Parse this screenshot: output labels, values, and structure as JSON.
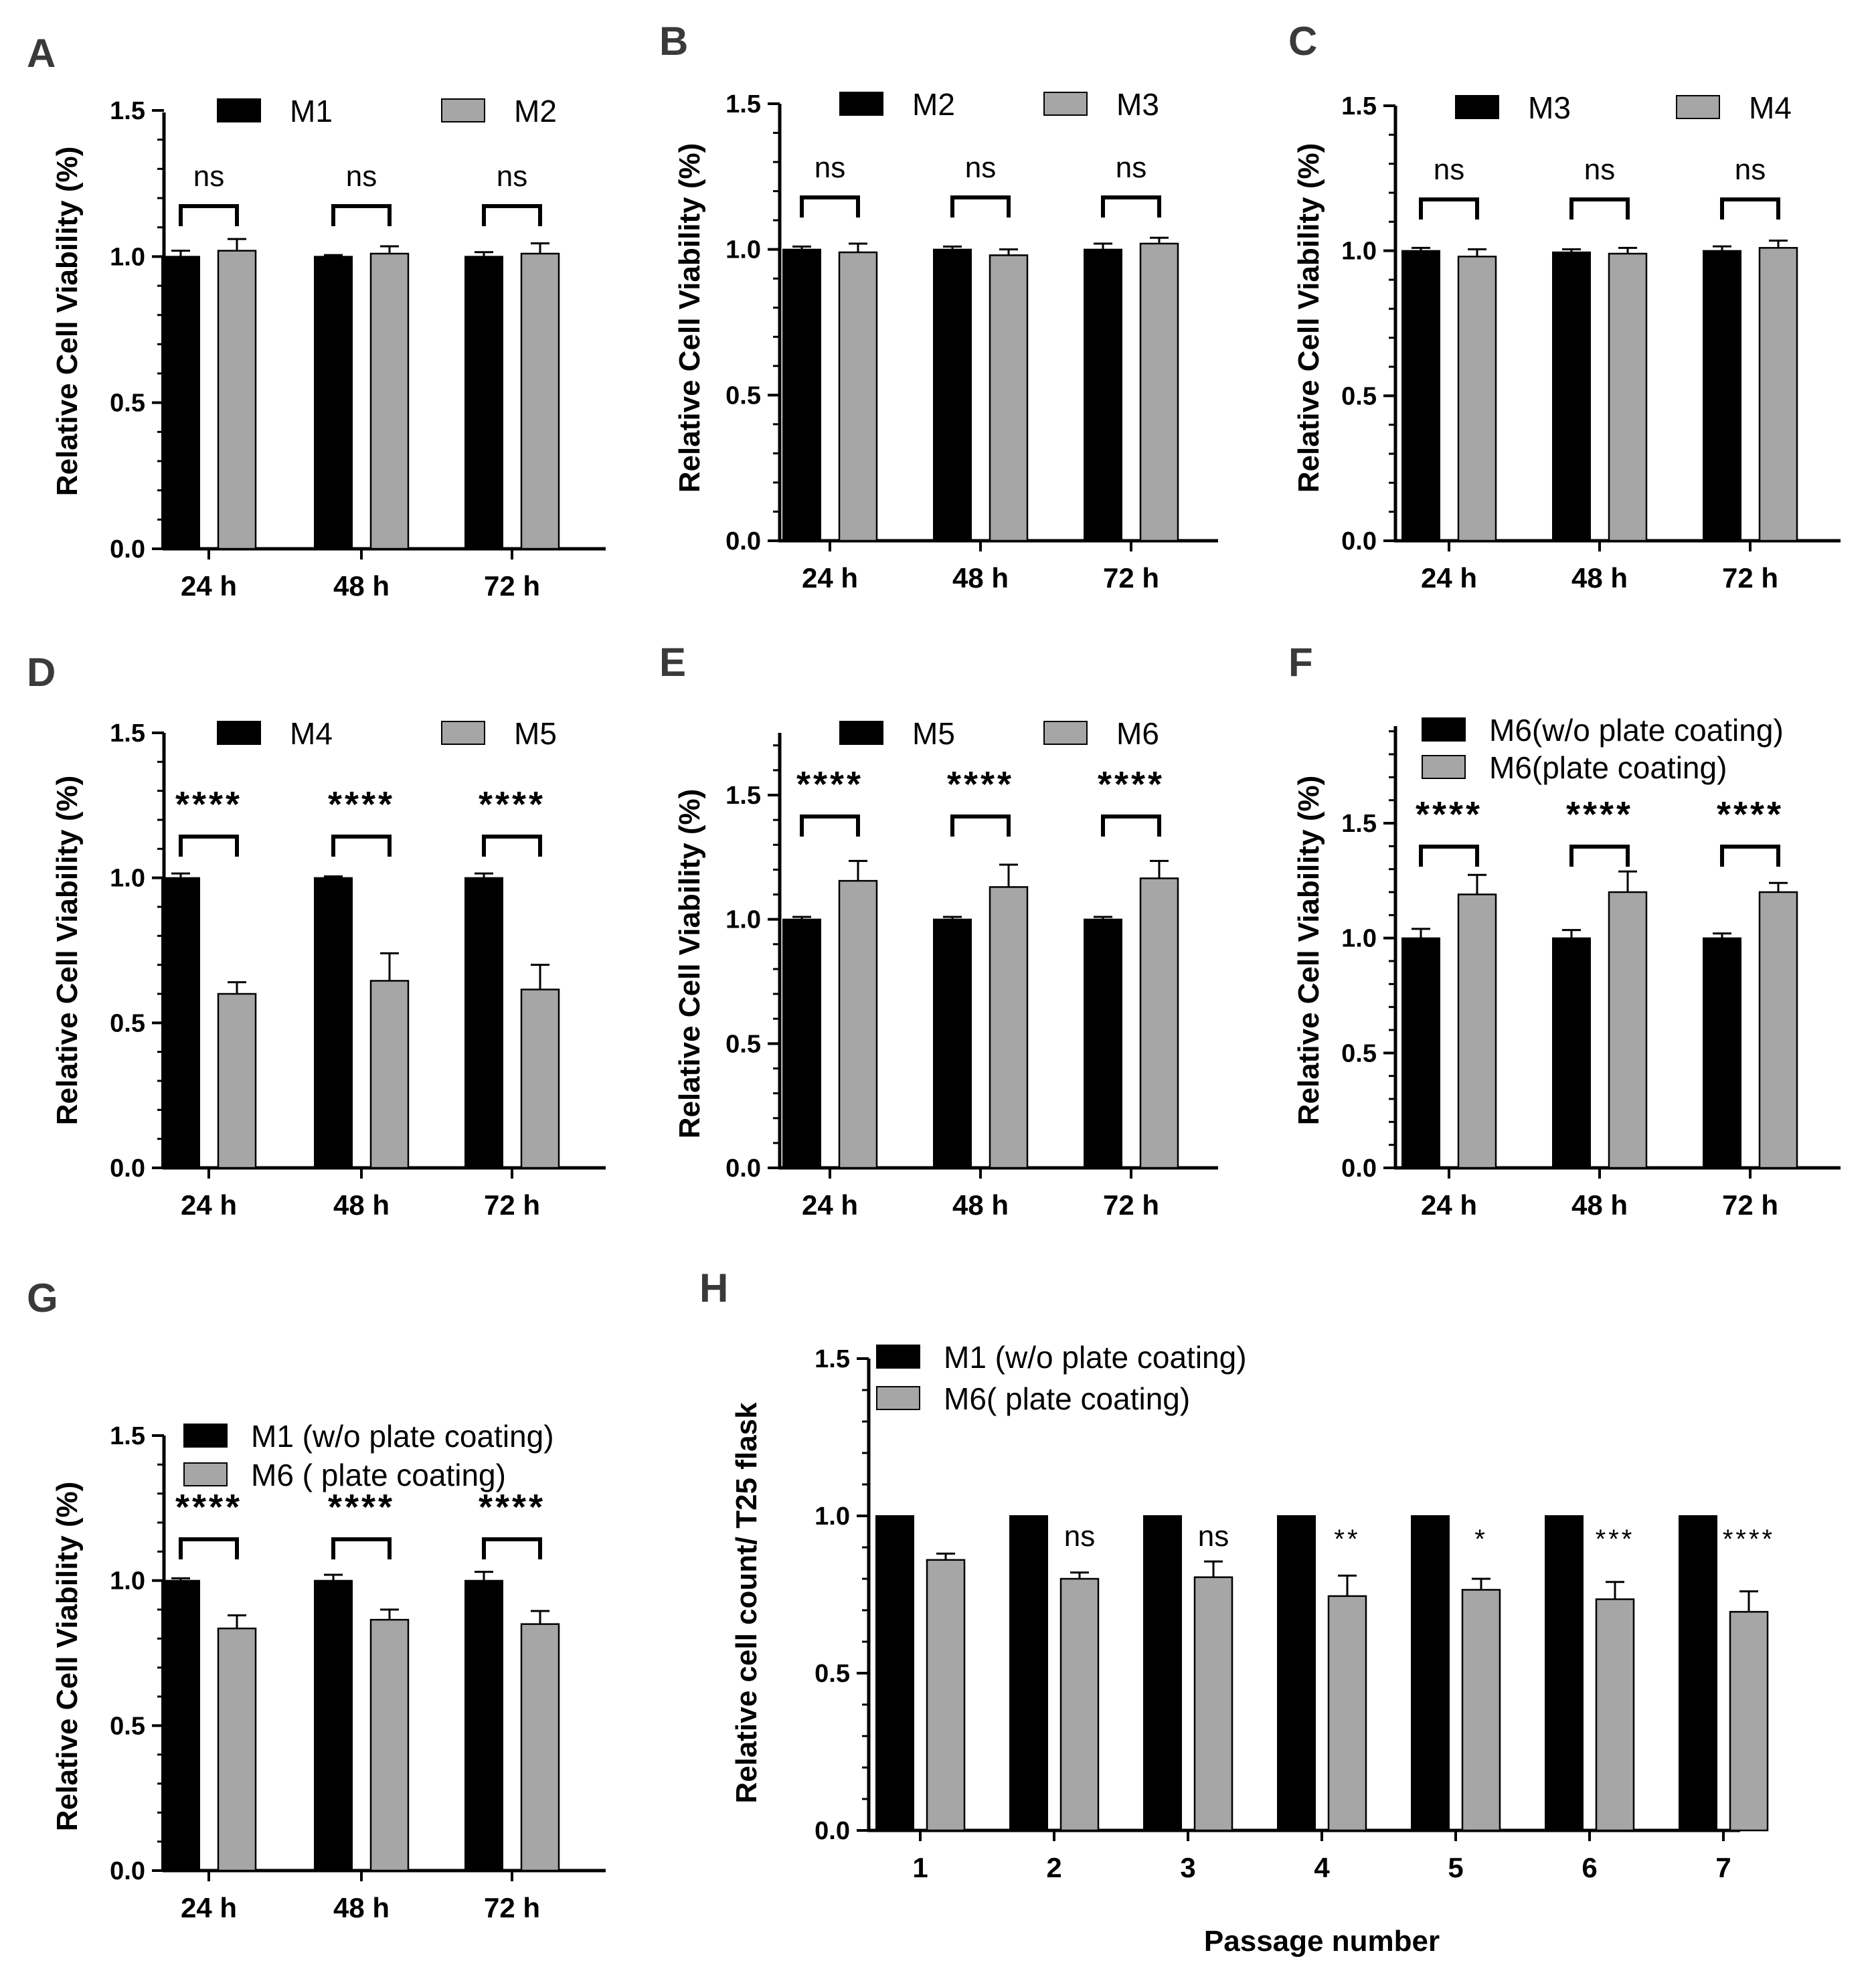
{
  "colors": {
    "series_1": "#000000",
    "series_2": "#a6a6a6",
    "axis": "#000000",
    "background": "#ffffff"
  },
  "chart_data": [
    {
      "panel": "A",
      "type": "bar",
      "categories": [
        "24 h",
        "48 h",
        "72 h"
      ],
      "series": [
        {
          "name": "M1",
          "values": [
            1.0,
            1.0,
            1.0
          ],
          "errors": [
            0.02,
            0.005,
            0.015
          ]
        },
        {
          "name": "M2",
          "values": [
            1.02,
            1.01,
            1.01
          ],
          "errors": [
            0.04,
            0.025,
            0.035
          ]
        }
      ],
      "significance": [
        "ns",
        "ns",
        "ns"
      ],
      "ylabel": "Relative Cell Viability (%)",
      "xlabel": "",
      "ylim": [
        0,
        1.5
      ],
      "yticks": [
        "0.0",
        "0.5",
        "1.0",
        "1.5"
      ]
    },
    {
      "panel": "B",
      "type": "bar",
      "categories": [
        "24 h",
        "48 h",
        "72 h"
      ],
      "series": [
        {
          "name": "M2",
          "values": [
            1.0,
            1.0,
            1.0
          ],
          "errors": [
            0.01,
            0.01,
            0.02
          ]
        },
        {
          "name": "M3",
          "values": [
            0.99,
            0.98,
            1.02
          ],
          "errors": [
            0.03,
            0.02,
            0.02
          ]
        }
      ],
      "significance": [
        "ns",
        "ns",
        "ns"
      ],
      "ylabel": "Relative Cell Viability (%)",
      "xlabel": "",
      "ylim": [
        0,
        1.5
      ],
      "yticks": [
        "0.0",
        "0.5",
        "1.0",
        "1.5"
      ]
    },
    {
      "panel": "C",
      "type": "bar",
      "categories": [
        "24 h",
        "48 h",
        "72 h"
      ],
      "series": [
        {
          "name": "M3",
          "values": [
            1.0,
            0.995,
            1.0
          ],
          "errors": [
            0.01,
            0.01,
            0.015
          ]
        },
        {
          "name": "M4",
          "values": [
            0.98,
            0.99,
            1.01
          ],
          "errors": [
            0.025,
            0.02,
            0.025
          ]
        }
      ],
      "significance": [
        "ns",
        "ns",
        "ns"
      ],
      "ylabel": "Relative Cell Viability (%)",
      "xlabel": "",
      "ylim": [
        0,
        1.5
      ],
      "yticks": [
        "0.0",
        "0.5",
        "1.0",
        "1.5"
      ]
    },
    {
      "panel": "D",
      "type": "bar",
      "categories": [
        "24 h",
        "48 h",
        "72 h"
      ],
      "series": [
        {
          "name": "M4",
          "values": [
            1.0,
            1.0,
            1.0
          ],
          "errors": [
            0.015,
            0.005,
            0.015
          ]
        },
        {
          "name": "M5",
          "values": [
            0.6,
            0.645,
            0.615
          ],
          "errors": [
            0.04,
            0.095,
            0.085
          ]
        }
      ],
      "significance": [
        "****",
        "****",
        "****"
      ],
      "ylabel": "Relative Cell Viability (%)",
      "xlabel": "",
      "ylim": [
        0,
        1.5
      ],
      "yticks": [
        "0.0",
        "0.5",
        "1.0",
        "1.5"
      ]
    },
    {
      "panel": "E",
      "type": "bar",
      "categories": [
        "24 h",
        "48 h",
        "72 h"
      ],
      "series": [
        {
          "name": "M5",
          "values": [
            1.0,
            1.0,
            1.0
          ],
          "errors": [
            0.01,
            0.01,
            0.01
          ]
        },
        {
          "name": "M6",
          "values": [
            1.155,
            1.13,
            1.165
          ],
          "errors": [
            0.08,
            0.09,
            0.07
          ]
        }
      ],
      "significance": [
        "****",
        "****",
        "****"
      ],
      "ylabel": "Relative Cell Viability (%)",
      "xlabel": "",
      "ylim": [
        0,
        1.75
      ],
      "yticks": [
        "0.0",
        "0.5",
        "1.0",
        "1.5"
      ]
    },
    {
      "panel": "F",
      "type": "bar",
      "categories": [
        "24 h",
        "48 h",
        "72 h"
      ],
      "series": [
        {
          "name": "M6(w/o plate coating)",
          "values": [
            1.0,
            1.0,
            1.0
          ],
          "errors": [
            0.04,
            0.035,
            0.02
          ]
        },
        {
          "name": "M6(plate coating)",
          "values": [
            1.19,
            1.2,
            1.2
          ],
          "errors": [
            0.085,
            0.09,
            0.04
          ]
        }
      ],
      "significance": [
        "****",
        "****",
        "****"
      ],
      "ylabel": "Relative Cell Viability (%)",
      "xlabel": "",
      "ylim": [
        0,
        1.95
      ],
      "yticks": [
        "0.0",
        "0.5",
        "1.0",
        "1.5"
      ]
    },
    {
      "panel": "G",
      "type": "bar",
      "categories": [
        "24 h",
        "48 h",
        "72 h"
      ],
      "series": [
        {
          "name": "M1 (w/o plate coating)",
          "values": [
            1.0,
            1.0,
            1.0
          ],
          "errors": [
            0.008,
            0.02,
            0.03
          ]
        },
        {
          "name": "M6 ( plate coating)",
          "values": [
            0.835,
            0.865,
            0.85
          ],
          "errors": [
            0.045,
            0.035,
            0.045
          ]
        }
      ],
      "significance": [
        "****",
        "****",
        "****"
      ],
      "ylabel": "Relative Cell Viability (%)",
      "xlabel": "",
      "ylim": [
        0,
        1.5
      ],
      "yticks": [
        "0.0",
        "0.5",
        "1.0",
        "1.5"
      ]
    },
    {
      "panel": "H",
      "type": "bar",
      "categories": [
        "1",
        "2",
        "3",
        "4",
        "5",
        "6",
        "7"
      ],
      "series": [
        {
          "name": "M1 (w/o plate coating)",
          "values": [
            1.0,
            1.0,
            1.0,
            1.0,
            1.0,
            1.0,
            1.0
          ],
          "errors": [
            0,
            0,
            0,
            0,
            0,
            0,
            0
          ]
        },
        {
          "name": "M6( plate coating)",
          "values": [
            0.86,
            0.8,
            0.805,
            0.745,
            0.765,
            0.735,
            0.695
          ],
          "errors": [
            0.02,
            0.02,
            0.05,
            0.065,
            0.035,
            0.055,
            0.065
          ]
        }
      ],
      "significance": [
        "",
        "ns",
        "ns",
        "**",
        "*",
        "***",
        "****"
      ],
      "ylabel": "Relative cell count/ T25 flask",
      "xlabel": "Passage number",
      "ylim": [
        0,
        1.5
      ],
      "yticks": [
        "0.0",
        "0.5",
        "1.0",
        "1.5"
      ]
    }
  ]
}
